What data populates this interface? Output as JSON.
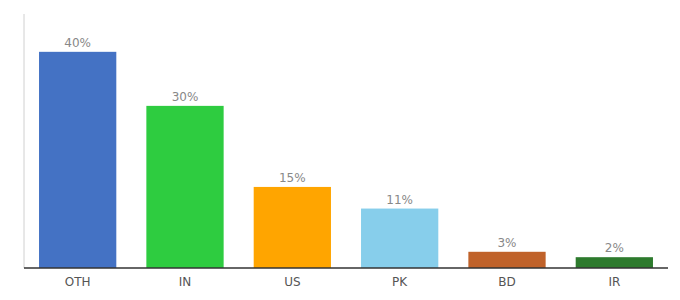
{
  "chart_data": {
    "type": "bar",
    "categories": [
      "OTH",
      "IN",
      "US",
      "PK",
      "BD",
      "IR"
    ],
    "values": [
      40,
      30,
      15,
      11,
      3,
      2
    ],
    "value_labels": [
      "40%",
      "30%",
      "15%",
      "11%",
      "3%",
      "2%"
    ],
    "colors": [
      "#4472C4",
      "#2ECC40",
      "#FFA500",
      "#87CEEB",
      "#C0622A",
      "#2D7A2D"
    ],
    "ylim": [
      0,
      47
    ],
    "data_labels": true,
    "tick_labels": "x",
    "grid": false
  }
}
